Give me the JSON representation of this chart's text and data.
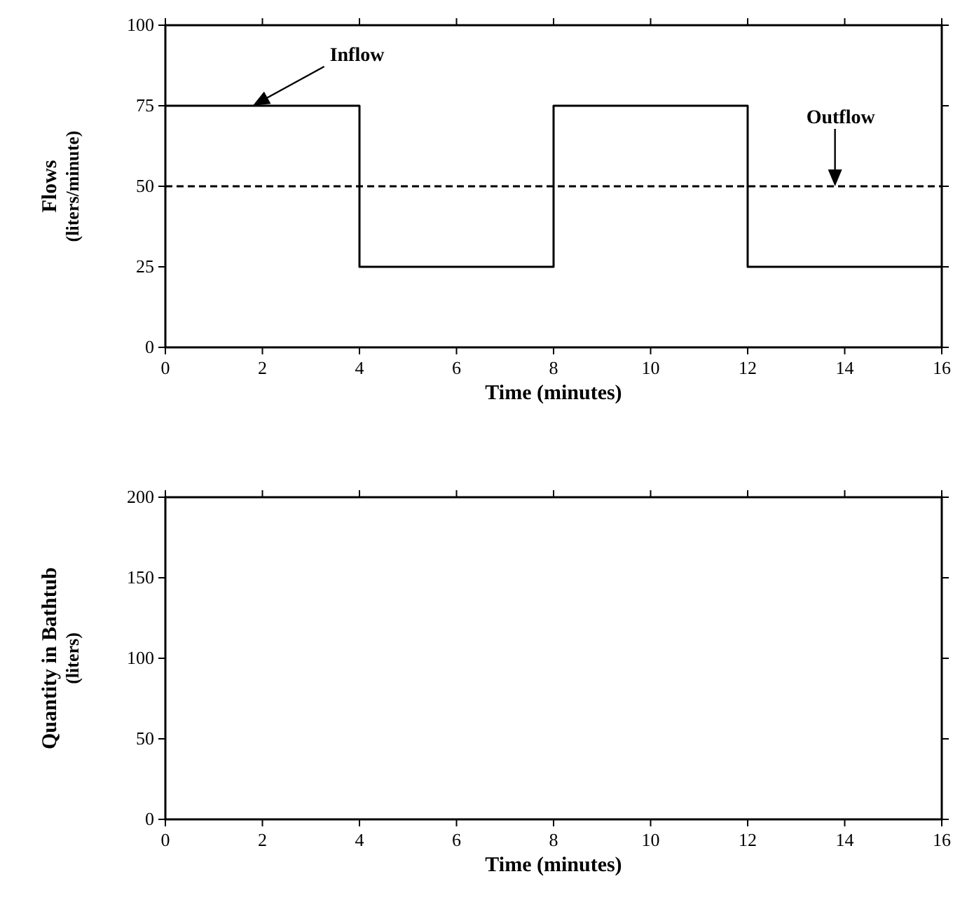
{
  "chart_data": [
    {
      "type": "line",
      "xlabel": "Time (minutes)",
      "ylabel": "Flows\n(liters/minute)",
      "xlim": [
        0,
        16
      ],
      "xticks": [
        0,
        2,
        4,
        6,
        8,
        10,
        12,
        14,
        16
      ],
      "ylim": [
        0,
        100
      ],
      "yticks": [
        0,
        25,
        50,
        75,
        100
      ],
      "grid": false,
      "series": [
        {
          "type": "step",
          "color": "#000000",
          "line_style": "solid",
          "x": [
            0,
            4,
            8,
            12,
            16
          ],
          "values": [
            75,
            25,
            75,
            25,
            25
          ]
        },
        {
          "type": "line",
          "color": "#000000",
          "line_style": "dashed",
          "x": [
            0,
            16
          ],
          "values": [
            50,
            50
          ]
        }
      ],
      "annotations": [
        {
          "text": "Inflow",
          "x": 1.8,
          "y": 75
        },
        {
          "text": "Outflow",
          "x": 13.8,
          "y": 50
        }
      ]
    },
    {
      "type": "line",
      "xlabel": "Time (minutes)",
      "ylabel": "Quantity in Bathtub\n(liters)",
      "xlim": [
        0,
        16
      ],
      "xticks": [
        0,
        2,
        4,
        6,
        8,
        10,
        12,
        14,
        16
      ],
      "ylim": [
        0,
        200
      ],
      "yticks": [
        0,
        50,
        100,
        150,
        200
      ],
      "grid": false
    }
  ]
}
